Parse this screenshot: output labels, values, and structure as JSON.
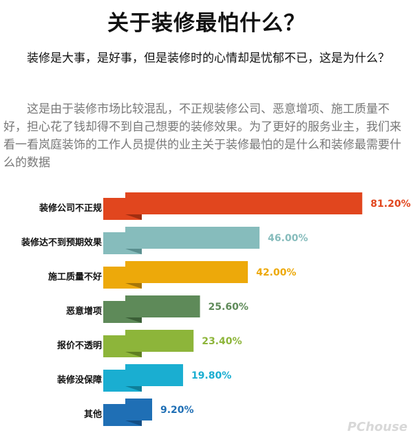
{
  "header": {
    "title": "关于装修最怕什么？",
    "intro": "装修是大事，是好事，但是装修时的心情却是忧郁不已，这是为什么？",
    "body": "这是由于装修市场比较混乱，不正规装修公司、恶意增项、施工质量不好，担心花了钱却得不到自己想要的装修效果。为了更好的服务业主，我们来看一看岚庭装饰的工作人员提供的业主关于装修最怕的是什么和装修最需要什么的数据"
  },
  "chart_data": {
    "type": "bar",
    "orientation": "horizontal",
    "categories": [
      "装修公司不正规",
      "装修达不到预期效果",
      "施工质量不好",
      "恶意增项",
      "报价不透明",
      "装修没保障",
      "其他"
    ],
    "values": [
      81.2,
      46.0,
      42.0,
      25.6,
      23.4,
      19.8,
      9.2
    ],
    "value_labels": [
      "81.20%",
      "46.00%",
      "42.00%",
      "25.60%",
      "23.40%",
      "19.80%",
      "9.20%"
    ],
    "colors": [
      "#e1461e",
      "#86bcbc",
      "#eda90a",
      "#5e8a59",
      "#8db53a",
      "#1aaed1",
      "#1f6fb5"
    ],
    "shadow_colors": [
      "#a12e10",
      "#5a8f8f",
      "#a67607",
      "#3b5f37",
      "#5f7f22",
      "#0e7f99",
      "#134e85"
    ],
    "xlim": [
      0,
      100
    ]
  },
  "watermark": "PChouse"
}
